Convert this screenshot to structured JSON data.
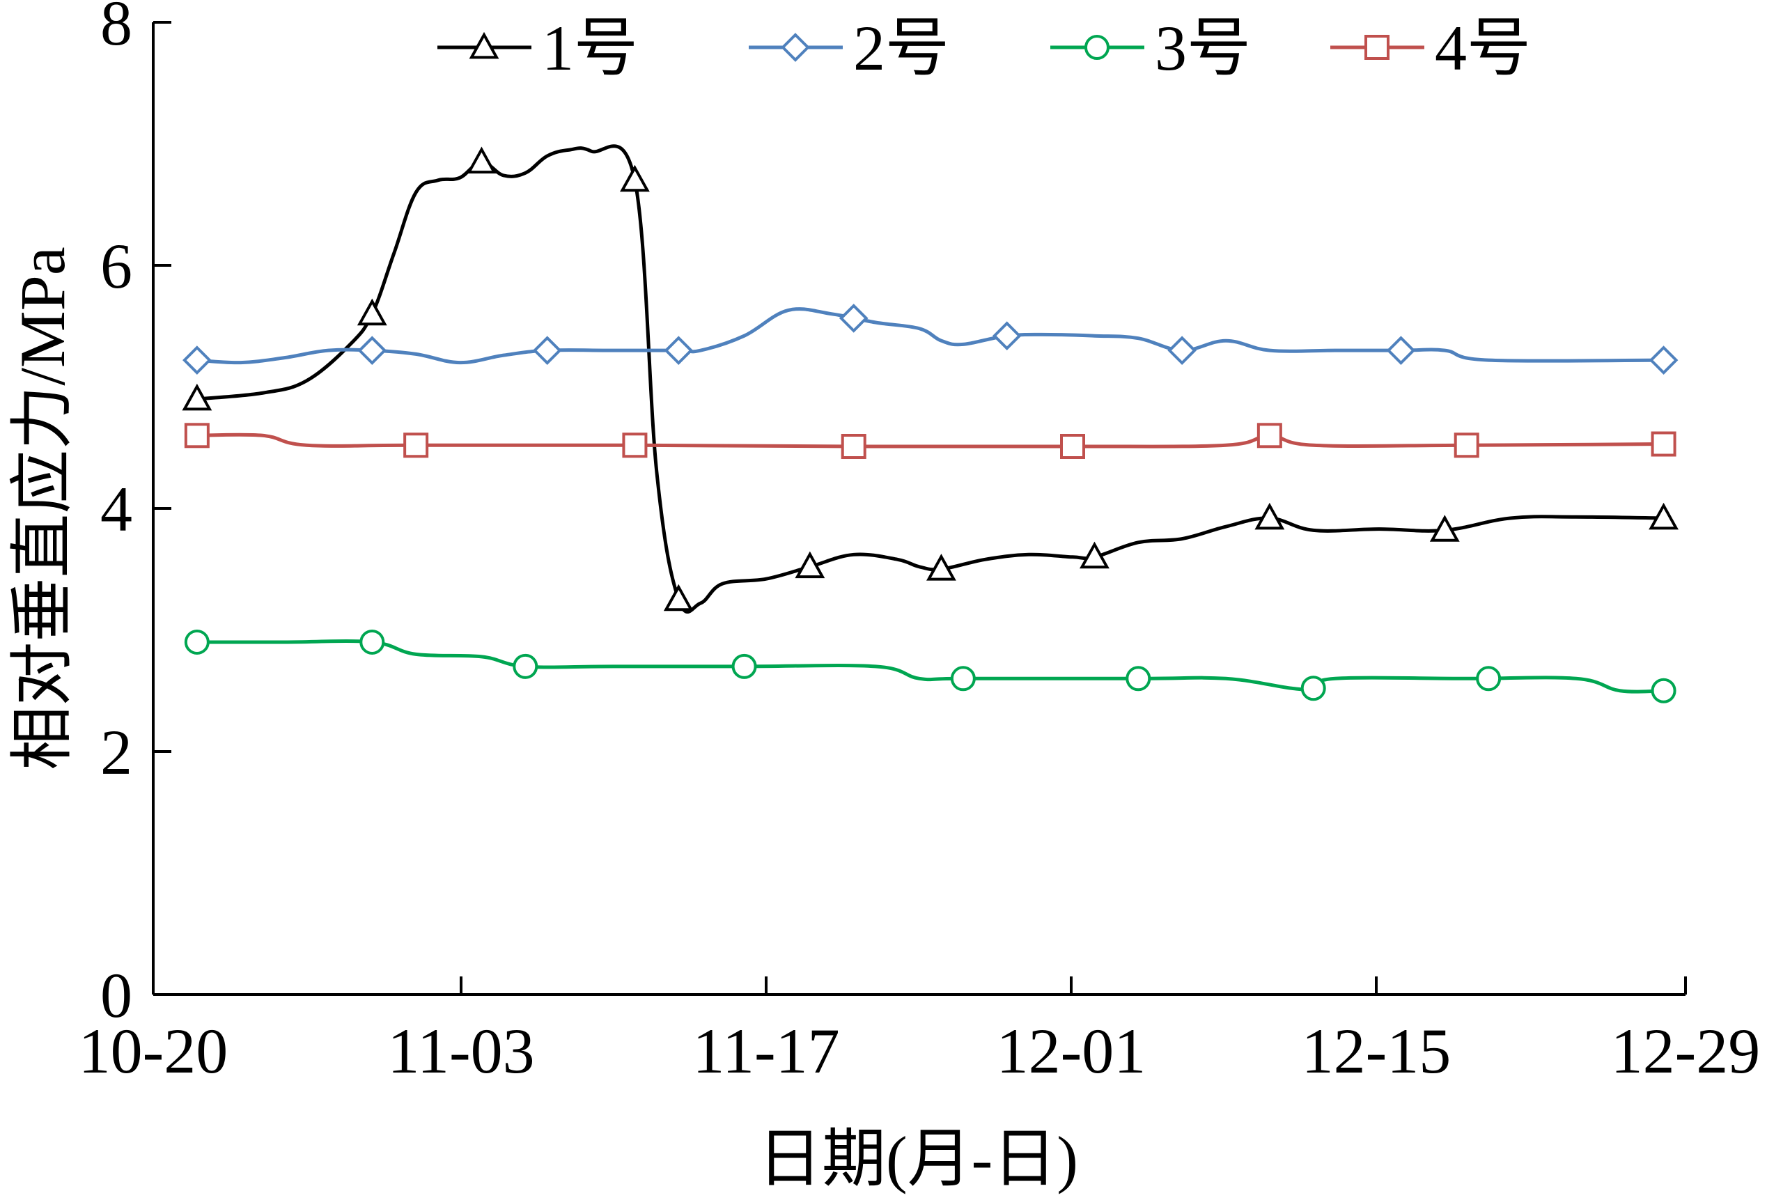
{
  "chart_data": {
    "type": "line",
    "title": "",
    "xlabel": "日期(月-日)",
    "ylabel": "相对垂直应力/MPa",
    "xlim": [
      "10-20",
      "12-29"
    ],
    "ylim": [
      0,
      8
    ],
    "x_ticks": [
      "10-20",
      "11-03",
      "11-17",
      "12-01",
      "12-15",
      "12-29"
    ],
    "y_ticks": [
      "0",
      "2",
      "4",
      "6",
      "8"
    ],
    "grid": false,
    "legend_position": "top",
    "series": [
      {
        "name": "1号",
        "color": "#000000",
        "marker": "triangle",
        "points": [
          [
            "10-22",
            4.9
          ],
          [
            "10-25",
            4.95
          ],
          [
            "10-27",
            5.05
          ],
          [
            "10-29",
            5.35
          ],
          [
            "10-30",
            5.6
          ],
          [
            "10-31",
            6.1
          ],
          [
            "11-01",
            6.6
          ],
          [
            "11-02",
            6.7
          ],
          [
            "11-03",
            6.72
          ],
          [
            "11-04",
            6.85
          ],
          [
            "11-05",
            6.74
          ],
          [
            "11-06",
            6.76
          ],
          [
            "11-07",
            6.9
          ],
          [
            "11-08",
            6.95
          ],
          [
            "11-09",
            6.94
          ],
          [
            "11-11",
            6.7
          ],
          [
            "11-12",
            4.3
          ],
          [
            "11-13",
            3.25
          ],
          [
            "11-14",
            3.22
          ],
          [
            "11-15",
            3.38
          ],
          [
            "11-17",
            3.42
          ],
          [
            "11-19",
            3.52
          ],
          [
            "11-21",
            3.62
          ],
          [
            "11-23",
            3.58
          ],
          [
            "11-24",
            3.52
          ],
          [
            "11-25",
            3.5
          ],
          [
            "11-27",
            3.58
          ],
          [
            "11-29",
            3.62
          ],
          [
            "12-01",
            3.6
          ],
          [
            "12-02",
            3.6
          ],
          [
            "12-04",
            3.72
          ],
          [
            "12-06",
            3.75
          ],
          [
            "12-08",
            3.85
          ],
          [
            "12-10",
            3.92
          ],
          [
            "12-12",
            3.82
          ],
          [
            "12-15",
            3.83
          ],
          [
            "12-18",
            3.82
          ],
          [
            "12-21",
            3.92
          ],
          [
            "12-24",
            3.93
          ],
          [
            "12-28",
            3.92
          ]
        ]
      },
      {
        "name": "2号",
        "color": "#4f81bd",
        "marker": "diamond",
        "points": [
          [
            "10-22",
            5.22
          ],
          [
            "10-24",
            5.2
          ],
          [
            "10-26",
            5.24
          ],
          [
            "10-28",
            5.3
          ],
          [
            "10-30",
            5.3
          ],
          [
            "11-01",
            5.27
          ],
          [
            "11-03",
            5.2
          ],
          [
            "11-05",
            5.26
          ],
          [
            "11-07",
            5.3
          ],
          [
            "11-10",
            5.3
          ],
          [
            "11-13",
            5.3
          ],
          [
            "11-14",
            5.3
          ],
          [
            "11-16",
            5.42
          ],
          [
            "11-18",
            5.63
          ],
          [
            "11-20",
            5.6
          ],
          [
            "11-22",
            5.53
          ],
          [
            "11-24",
            5.48
          ],
          [
            "11-25",
            5.38
          ],
          [
            "11-26",
            5.35
          ],
          [
            "11-28",
            5.42
          ],
          [
            "11-30",
            5.43
          ],
          [
            "12-02",
            5.42
          ],
          [
            "12-04",
            5.4
          ],
          [
            "12-06",
            5.3
          ],
          [
            "12-08",
            5.38
          ],
          [
            "12-10",
            5.3
          ],
          [
            "12-13",
            5.3
          ],
          [
            "12-16",
            5.3
          ],
          [
            "12-18",
            5.3
          ],
          [
            "12-20",
            5.22
          ],
          [
            "12-28",
            5.22
          ]
        ]
      },
      {
        "name": "3号",
        "color": "#00a651",
        "marker": "circle",
        "points": [
          [
            "10-22",
            2.9
          ],
          [
            "10-26",
            2.9
          ],
          [
            "10-30",
            2.9
          ],
          [
            "11-01",
            2.8
          ],
          [
            "11-04",
            2.78
          ],
          [
            "11-06",
            2.7
          ],
          [
            "11-10",
            2.7
          ],
          [
            "11-16",
            2.7
          ],
          [
            "11-22",
            2.7
          ],
          [
            "11-24",
            2.6
          ],
          [
            "11-26",
            2.6
          ],
          [
            "12-04",
            2.6
          ],
          [
            "12-08",
            2.6
          ],
          [
            "12-11",
            2.52
          ],
          [
            "12-12",
            2.52
          ],
          [
            "12-13",
            2.6
          ],
          [
            "12-19",
            2.6
          ],
          [
            "12-24",
            2.6
          ],
          [
            "12-26",
            2.5
          ],
          [
            "12-28",
            2.5
          ]
        ]
      },
      {
        "name": "4号",
        "color": "#c0504d",
        "marker": "square",
        "points": [
          [
            "10-22",
            4.6
          ],
          [
            "10-25",
            4.6
          ],
          [
            "10-27",
            4.52
          ],
          [
            "11-01",
            4.52
          ],
          [
            "11-11",
            4.52
          ],
          [
            "11-21",
            4.51
          ],
          [
            "12-01",
            4.51
          ],
          [
            "12-08",
            4.52
          ],
          [
            "12-10",
            4.6
          ],
          [
            "12-12",
            4.52
          ],
          [
            "12-19",
            4.52
          ],
          [
            "12-28",
            4.53
          ]
        ]
      }
    ],
    "markers": {
      "1号": [
        "10-22",
        "10-30",
        "11-04",
        "11-11",
        "11-13",
        "11-19",
        "11-25",
        "12-02",
        "12-10",
        "12-18",
        "12-28"
      ],
      "2号": [
        "10-22",
        "10-30",
        "11-07",
        "11-13",
        "11-21",
        "11-28",
        "12-06",
        "12-16",
        "12-28"
      ],
      "3号": [
        "10-22",
        "10-30",
        "11-06",
        "11-16",
        "11-26",
        "12-04",
        "12-12",
        "12-20",
        "12-28"
      ],
      "4号": [
        "10-22",
        "11-01",
        "11-11",
        "11-21",
        "12-01",
        "12-10",
        "12-19",
        "12-28"
      ]
    }
  }
}
